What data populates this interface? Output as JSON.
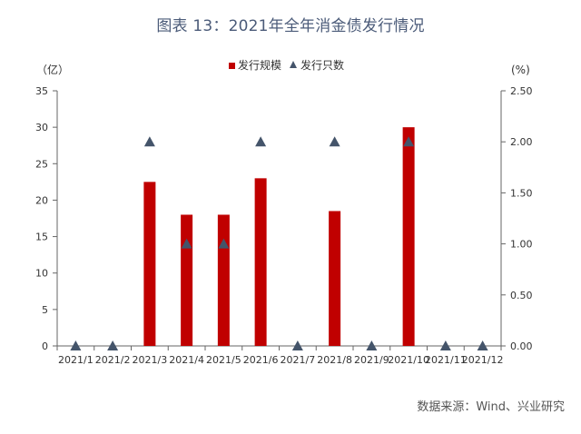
{
  "page": {
    "title": "图表 13：2021年全年消金债发行情况",
    "source": "数据来源：Wind、兴业研究"
  },
  "colors": {
    "bar": "#c00000",
    "marker": "#44546a",
    "title": "#4b5b79",
    "axis": "#333333"
  },
  "chart_data": {
    "type": "bar",
    "title": "",
    "categories": [
      "2021/1",
      "2021/2",
      "2021/3",
      "2021/4",
      "2021/5",
      "2021/6",
      "2021/7",
      "2021/8",
      "2021/9",
      "2021/10",
      "2021/11",
      "2021/12"
    ],
    "series": [
      {
        "name": "发行规模",
        "axis": "left",
        "type": "bar",
        "values": [
          0,
          0,
          22.5,
          18,
          18,
          23,
          0,
          18.5,
          0,
          30,
          0,
          0
        ]
      },
      {
        "name": "发行只数",
        "axis": "right",
        "type": "scatter",
        "marker": "triangle",
        "values": [
          0,
          0,
          2,
          1,
          1,
          2,
          0,
          2,
          0,
          2,
          0,
          0
        ]
      }
    ],
    "y_left": {
      "label": "（亿）",
      "ylim": [
        0,
        35
      ],
      "ticks": [
        "0",
        "5",
        "10",
        "15",
        "20",
        "25",
        "30",
        "35"
      ]
    },
    "y_right": {
      "label": "(%)",
      "ylim": [
        0,
        2.5
      ],
      "ticks": [
        "0.00",
        "0.50",
        "1.00",
        "1.50",
        "2.00",
        "2.50"
      ]
    },
    "grid": false,
    "legend": "top-center"
  }
}
